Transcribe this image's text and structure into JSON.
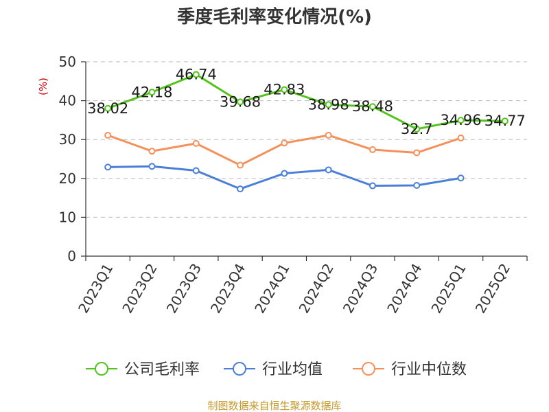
{
  "title": "季度毛利率变化情况(%)",
  "source": "制图数据来自恒生聚源数据库",
  "colors": {
    "axis": "#333333",
    "grid": "#bbbbbb",
    "unit": "#cc0000",
    "source": "#c49a2c"
  },
  "chart_data": {
    "type": "line",
    "title": "季度毛利率变化情况(%)",
    "ylabel": "(%)",
    "xlabel": "",
    "ylim": [
      0,
      50
    ],
    "yticks": [
      0,
      10,
      20,
      30,
      40,
      50
    ],
    "grid": true,
    "legend_position": "bottom",
    "categories": [
      "2023Q1",
      "2023Q2",
      "2023Q3",
      "2023Q4",
      "2024Q1",
      "2024Q2",
      "2024Q3",
      "2024Q4",
      "2025Q1",
      "2025Q2"
    ],
    "series": [
      {
        "name": "公司毛利率",
        "color": "#52c41a",
        "show_labels": true,
        "values": [
          38.02,
          42.18,
          46.74,
          39.68,
          42.83,
          38.98,
          38.48,
          32.7,
          34.96,
          34.77
        ]
      },
      {
        "name": "行业均值",
        "color": "#4a7fd8",
        "show_labels": false,
        "values": [
          22.9,
          23.1,
          22.0,
          17.3,
          21.3,
          22.2,
          18.1,
          18.2,
          20.1,
          null
        ]
      },
      {
        "name": "行业中位数",
        "color": "#f5905a",
        "show_labels": false,
        "values": [
          31.1,
          27.0,
          29.0,
          23.4,
          29.1,
          31.1,
          27.4,
          26.6,
          30.4,
          null
        ]
      }
    ]
  }
}
